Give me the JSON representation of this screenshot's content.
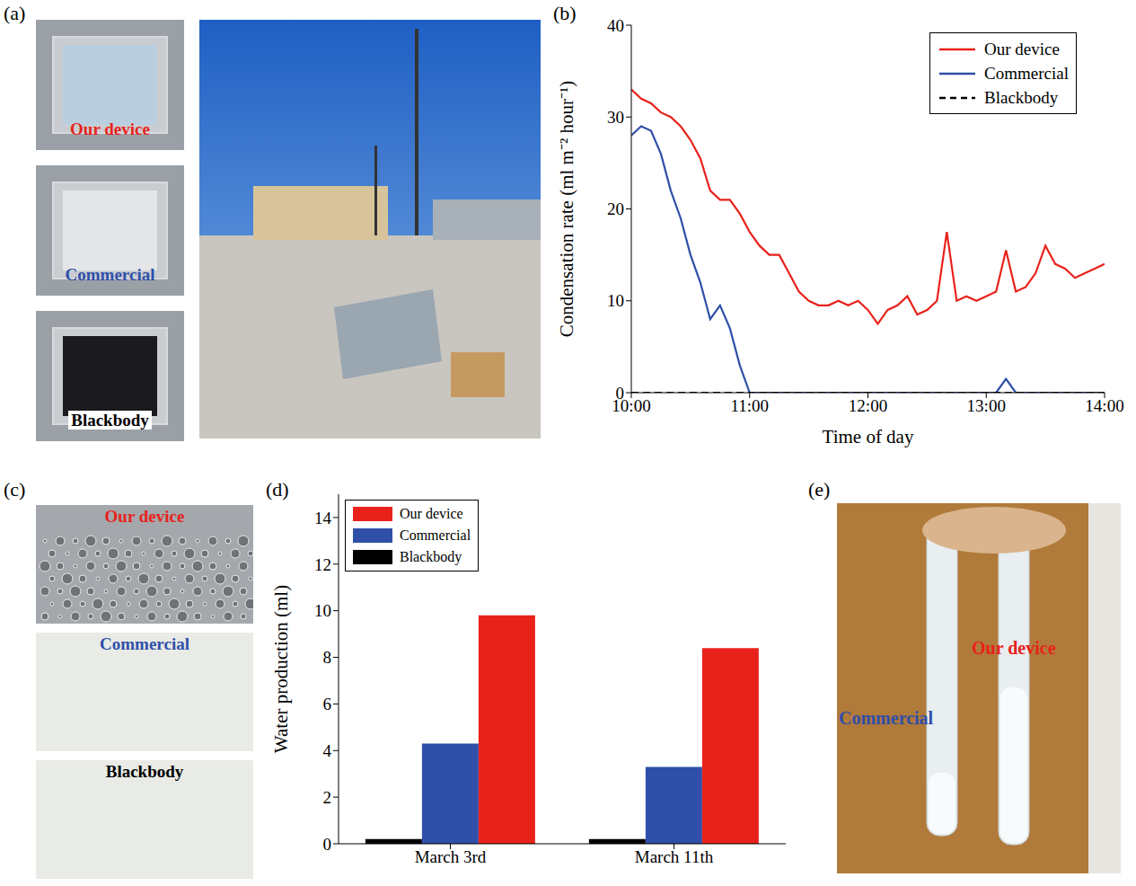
{
  "chart_data": [
    {
      "panel": "(b)",
      "type": "line",
      "x": [
        600,
        605,
        610,
        615,
        620,
        625,
        630,
        635,
        640,
        645,
        650,
        655,
        660,
        665,
        670,
        675,
        680,
        685,
        690,
        695,
        700,
        705,
        710,
        715,
        720,
        725,
        730,
        735,
        740,
        745,
        750,
        755,
        760,
        765,
        770,
        775,
        780,
        785,
        790,
        795,
        800,
        805,
        810,
        815,
        820,
        825,
        830,
        835,
        840
      ],
      "x_label": "Time of day",
      "y_label": "Condensation rate (ml m⁻² hour⁻¹)",
      "xlim": [
        600,
        840
      ],
      "xticks": [
        {
          "value": 600,
          "label": "10:00"
        },
        {
          "value": 660,
          "label": "11:00"
        },
        {
          "value": 720,
          "label": "12:00"
        },
        {
          "value": 780,
          "label": "13:00"
        },
        {
          "value": 840,
          "label": "14:00"
        }
      ],
      "ylim": [
        0,
        40
      ],
      "yticks": [
        0,
        10,
        20,
        30,
        40
      ],
      "legend": "top-right",
      "series": [
        {
          "name": "Our device",
          "color": "#e8221b",
          "line_style": "solid",
          "values": [
            33,
            32,
            31.5,
            30.5,
            30,
            29,
            27.5,
            25.5,
            22,
            21,
            21,
            19.5,
            17.5,
            16,
            15,
            15,
            13,
            11,
            10,
            9.5,
            9.5,
            10,
            9.5,
            10,
            9,
            7.5,
            9,
            9.5,
            10.5,
            8.5,
            9,
            10,
            17.5,
            10,
            10.5,
            10,
            10.5,
            11,
            15.5,
            11,
            11.5,
            13,
            16,
            14,
            13.5,
            12.5,
            13,
            13.5,
            14
          ]
        },
        {
          "name": "Commercial",
          "color": "#2f4fa8",
          "line_style": "solid",
          "values": [
            28,
            29,
            28.5,
            26,
            22,
            19,
            15,
            12,
            8,
            9.5,
            7,
            3,
            0,
            0,
            0,
            0,
            0,
            0,
            0,
            0,
            0,
            0,
            0,
            0,
            0,
            0,
            0,
            0,
            0,
            0,
            0,
            0,
            0,
            0,
            0,
            0,
            0,
            0,
            1.5,
            0,
            0,
            0,
            0,
            0,
            0,
            0,
            0,
            0,
            0
          ]
        },
        {
          "name": "Blackbody",
          "color": "#000000",
          "line_style": "dashed",
          "values": [
            0,
            0,
            0,
            0,
            0,
            0,
            0,
            0,
            0,
            0,
            0,
            0,
            0,
            0,
            0,
            0,
            0,
            0,
            0,
            0,
            0,
            0,
            0,
            0,
            0,
            0,
            0,
            0,
            0,
            0,
            0,
            0,
            0,
            0,
            0,
            0,
            0,
            0,
            0,
            0,
            0,
            0,
            0,
            0,
            0,
            0,
            0,
            0,
            0
          ]
        }
      ]
    },
    {
      "panel": "(d)",
      "type": "bar",
      "categories": [
        "March 3rd",
        "March 11th"
      ],
      "y_label": "Water production (ml)",
      "ylim": [
        0,
        15
      ],
      "yticks": [
        0,
        2,
        4,
        6,
        8,
        10,
        12,
        14
      ],
      "legend": "top-left",
      "series": [
        {
          "name": "Our device",
          "color": "#e8221b",
          "values": [
            9.8,
            8.4
          ]
        },
        {
          "name": "Commercial",
          "color": "#2f4fa8",
          "values": [
            4.3,
            3.3
          ]
        },
        {
          "name": "Blackbody",
          "color": "#000000",
          "values": [
            0.2,
            0.2
          ]
        }
      ]
    }
  ],
  "photos": [
    {
      "panel": "(a)",
      "labels": [
        {
          "text": "Our device",
          "color": "#e8221b"
        },
        {
          "text": "Commercial",
          "color": "#2f4fa8"
        },
        {
          "text": "Blackbody",
          "color": "#000000"
        }
      ]
    },
    {
      "panel": "(c)",
      "labels": [
        {
          "text": "Our device",
          "color": "#e8221b"
        },
        {
          "text": "Commercial",
          "color": "#2f4fa8"
        },
        {
          "text": "Blackbody",
          "color": "#000000"
        }
      ]
    },
    {
      "panel": "(e)",
      "labels": [
        {
          "text": "Commercial",
          "color": "#2f4fa8"
        },
        {
          "text": "Our device",
          "color": "#e8221b"
        }
      ]
    }
  ]
}
